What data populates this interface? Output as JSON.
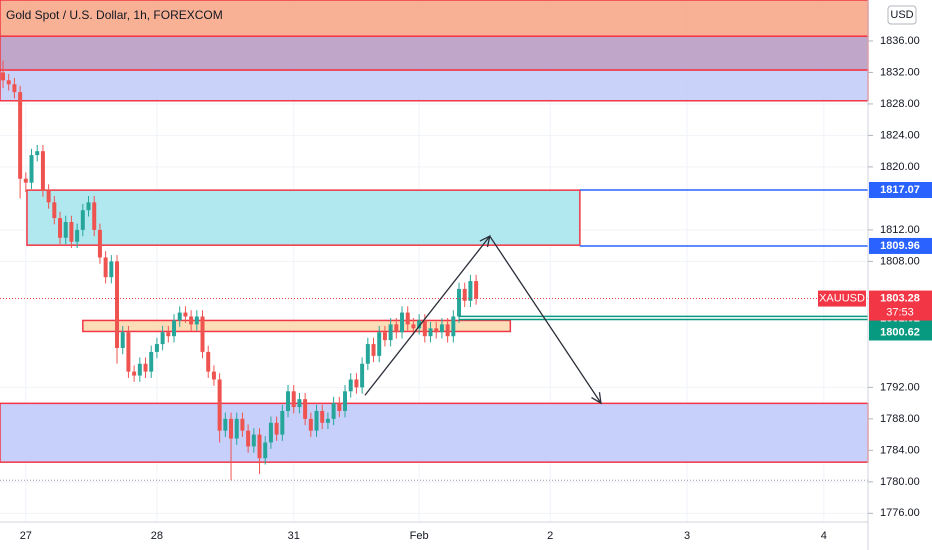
{
  "chart_data": {
    "type": "candlestick",
    "title": "Gold Spot / U.S. Dollar, 1h, FOREXCOM",
    "currency": "USD",
    "x": [
      0,
      1,
      2,
      3,
      4,
      5,
      6,
      7,
      8,
      9,
      10,
      11,
      12,
      13,
      14,
      15,
      16,
      17,
      18,
      19,
      20,
      21,
      22,
      23,
      24,
      25,
      26,
      27,
      28,
      29,
      30,
      31,
      32,
      33,
      34,
      35,
      36,
      37,
      38,
      39,
      40,
      41,
      42,
      43,
      44,
      45,
      46,
      47,
      48,
      49,
      50,
      51,
      52,
      53,
      54,
      55,
      56,
      57,
      58,
      59,
      60,
      61,
      62,
      63,
      64,
      65,
      66,
      67,
      68,
      69,
      70,
      71,
      72,
      73,
      74,
      75,
      76,
      77,
      78,
      79,
      80,
      81,
      82,
      83
    ],
    "open": [
      1832,
      1831,
      1830.5,
      1829.5,
      1818.5,
      1818,
      1821.5,
      1822,
      1817,
      1815.5,
      1813.5,
      1811,
      1813,
      1810.5,
      1812,
      1814.5,
      1815.5,
      1812,
      1808.5,
      1806,
      1808,
      1797,
      1799,
      1794,
      1793.5,
      1795,
      1794,
      1796.5,
      1797.5,
      1799,
      1798.5,
      1800.5,
      1801.5,
      1801,
      1800,
      1801,
      1796.5,
      1794,
      1793,
      1786.5,
      1788,
      1785.5,
      1788,
      1786.5,
      1784.5,
      1786,
      1783,
      1785,
      1787.5,
      1786,
      1789,
      1791.5,
      1789.5,
      1790.5,
      1788,
      1786.5,
      1789,
      1787.5,
      1788,
      1790,
      1789,
      1791.5,
      1793,
      1792,
      1795,
      1797.5,
      1796,
      1799,
      1798,
      1800,
      1799,
      1801.5,
      1800,
      1799.5,
      1800.5,
      1798.5,
      1799.5,
      1799,
      1800,
      1798.5,
      1801,
      1804.5,
      1803,
      1805.5
    ],
    "high": [
      1833.5,
      1831.8,
      1831.3,
      1830.3,
      1819.3,
      1822.3,
      1822.8,
      1822.8,
      1817.8,
      1816.3,
      1814.3,
      1813.8,
      1813.8,
      1812.8,
      1815.3,
      1816.3,
      1816.3,
      1812.8,
      1809.3,
      1808.8,
      1808.8,
      1799.8,
      1799.8,
      1794.8,
      1795.8,
      1795.8,
      1797.3,
      1798.3,
      1799.8,
      1799.8,
      1801.3,
      1802.3,
      1802.3,
      1801.8,
      1801.8,
      1801.8,
      1797.3,
      1794.8,
      1793.8,
      1788.8,
      1788.8,
      1788.8,
      1788.8,
      1787.3,
      1786.8,
      1786.8,
      1785.8,
      1788.3,
      1788.3,
      1789.8,
      1792.3,
      1792.3,
      1791.3,
      1791.3,
      1788.8,
      1789.8,
      1789.8,
      1788.8,
      1790.8,
      1790.8,
      1792.3,
      1793.8,
      1793.8,
      1795.8,
      1798.3,
      1798.3,
      1799.8,
      1799.8,
      1800.8,
      1800.8,
      1802.3,
      1802.3,
      1800.8,
      1801.3,
      1801.3,
      1800.3,
      1800.3,
      1800.8,
      1800.8,
      1801.8,
      1805.3,
      1805.3,
      1806.3,
      1806.3
    ],
    "low": [
      1830,
      1829.7,
      1828.7,
      1816,
      1816.8,
      1817.2,
      1820.7,
      1816.2,
      1814.7,
      1812.7,
      1810.2,
      1810.2,
      1809.7,
      1809.7,
      1811.2,
      1813.7,
      1811.2,
      1807.7,
      1805.2,
      1805.2,
      1795,
      1796.2,
      1793.2,
      1792.7,
      1792.7,
      1793.2,
      1793.2,
      1795.7,
      1796.7,
      1797.7,
      1797.7,
      1799.7,
      1800.2,
      1799.2,
      1799.2,
      1795.7,
      1793.2,
      1792.2,
      1785,
      1785.7,
      1780.2,
      1784.7,
      1785.7,
      1783.7,
      1783.7,
      1781,
      1782.2,
      1784.2,
      1785.2,
      1785.2,
      1788.2,
      1788.7,
      1788.7,
      1787.2,
      1785.7,
      1785.7,
      1786.7,
      1786.7,
      1787.2,
      1788.2,
      1788.2,
      1790.7,
      1791.2,
      1791.2,
      1794.2,
      1795.2,
      1795.2,
      1797.2,
      1797.2,
      1798.2,
      1798.2,
      1799.2,
      1798.7,
      1798.7,
      1797.7,
      1797.7,
      1798.2,
      1798.2,
      1797.7,
      1797.7,
      1800.2,
      1802.2,
      1802.2,
      1802.5
    ],
    "close": [
      1831,
      1830.5,
      1829.5,
      1818.5,
      1818,
      1821.5,
      1822,
      1817,
      1815.5,
      1813.5,
      1811,
      1813,
      1810.5,
      1812,
      1814.5,
      1815.5,
      1812,
      1808.5,
      1806,
      1808,
      1797,
      1799,
      1794,
      1793.5,
      1795,
      1794,
      1796.5,
      1797.5,
      1799,
      1798.5,
      1800.5,
      1801.5,
      1801,
      1800,
      1801,
      1796.5,
      1794,
      1793,
      1786.5,
      1788,
      1785.5,
      1788,
      1786.5,
      1784.5,
      1786,
      1783,
      1785,
      1787.5,
      1786,
      1789,
      1791.5,
      1789.5,
      1790.5,
      1788,
      1786.5,
      1789,
      1787.5,
      1788,
      1790,
      1789,
      1791.5,
      1793,
      1792,
      1795,
      1797.5,
      1796,
      1799,
      1798,
      1800,
      1799,
      1801.5,
      1800,
      1799.5,
      1800.5,
      1798.5,
      1799.5,
      1799,
      1800,
      1798.5,
      1801,
      1804.5,
      1803,
      1805.5,
      1803.28
    ],
    "up_color": "#26a69a",
    "down_color": "#ef5350",
    "xlim": [
      -0.53,
      151.75
    ],
    "ylim": [
      1774.9,
      1841.2
    ],
    "xticks": [
      {
        "value": 4,
        "label": "27"
      },
      {
        "value": 27,
        "label": "28"
      },
      {
        "value": 51,
        "label": "31"
      },
      {
        "value": 73,
        "label": "Feb"
      },
      {
        "value": 96,
        "label": "2"
      },
      {
        "value": 120,
        "label": "3"
      },
      {
        "value": 144,
        "label": "4"
      }
    ],
    "yticks": [
      {
        "value": 1776,
        "label": "1776.00"
      },
      {
        "value": 1780,
        "label": "1780.00"
      },
      {
        "value": 1784,
        "label": "1784.00"
      },
      {
        "value": 1788,
        "label": "1788.00"
      },
      {
        "value": 1792,
        "label": "1792.00"
      },
      {
        "value": 1808,
        "label": "1808.00"
      },
      {
        "value": 1812,
        "label": "1812.00"
      },
      {
        "value": 1820,
        "label": "1820.00"
      },
      {
        "value": 1824,
        "label": "1824.00"
      },
      {
        "value": 1828,
        "label": "1828.00"
      },
      {
        "value": 1832,
        "label": "1832.00"
      },
      {
        "value": 1836,
        "label": "1836.00"
      }
    ],
    "zones": [
      {
        "top": 1841.2,
        "bottom": 1836.6,
        "color": "#f8a98a"
      },
      {
        "top": 1836.6,
        "bottom": 1832.3,
        "color": "#b99dc4"
      },
      {
        "top": 1832.3,
        "bottom": 1828.4,
        "color": "#c3cdf8"
      },
      {
        "top": 1817.05,
        "bottom": 1810.06,
        "x0": 4.2,
        "x1": 101.2,
        "color": "#a9e4ec"
      },
      {
        "top": 1800.5,
        "bottom": 1799.1,
        "x0": 14,
        "x1": 89,
        "color": "#fdd9b0"
      },
      {
        "top": 1789.97,
        "bottom": 1782.5,
        "color": "#c1cbf9"
      }
    ],
    "levels": [
      {
        "value": 1817.07,
        "color": "#2962ff",
        "from": 101.2
      },
      {
        "value": 1809.96,
        "color": "#2962ff",
        "from": 101.2
      },
      {
        "value": 1801.02,
        "color": "#089981",
        "from": 80
      },
      {
        "value": 1800.62,
        "color": "#089981",
        "from": 80
      }
    ],
    "last": {
      "value": 1803.28,
      "name": "XAUUSD",
      "countdown": "37:53",
      "color": "#f23645"
    },
    "arrow": [
      {
        "x": 63.5,
        "y": 1791
      },
      {
        "x": 85.4,
        "y": 1811.2
      },
      {
        "x": 104.9,
        "y": 1790
      }
    ]
  }
}
